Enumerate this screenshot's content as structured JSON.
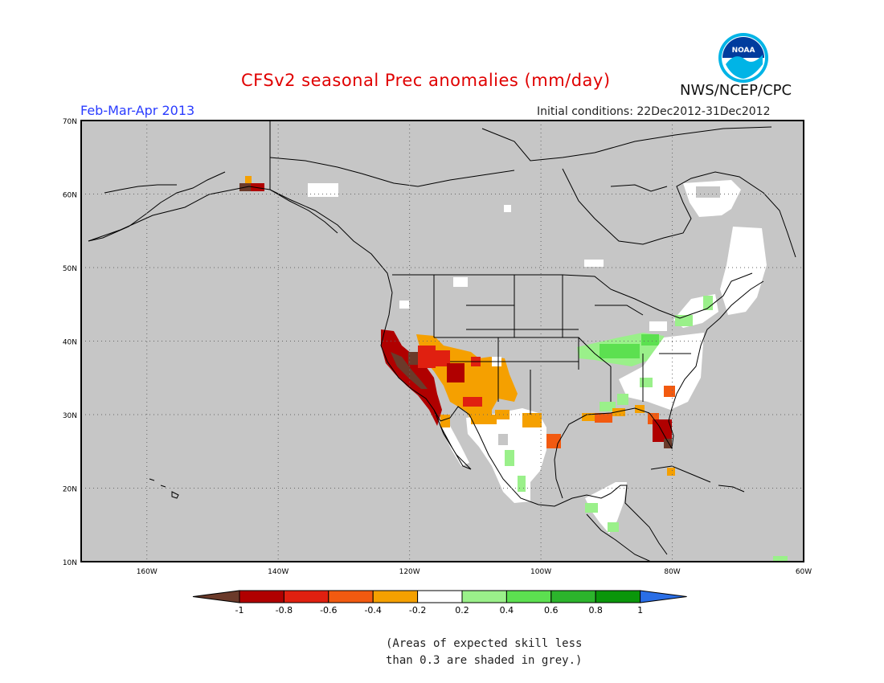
{
  "title": "CFSv2 seasonal Prec anomalies (mm/day)",
  "season": "Feb-Mar-Apr 2013",
  "initial_conditions": "Initial conditions: 22Dec2012-31Dec2012",
  "organization": "NWS/NCEP/CPC",
  "logo_text": "NOAA",
  "footnote": {
    "line1": "(Areas of expected skill less",
    "line2": "than 0.3 are shaded in grey.)"
  },
  "map": {
    "lon_range": [
      -170,
      -60
    ],
    "lat_range": [
      10,
      70
    ],
    "lat_ticks": [
      "10N",
      "20N",
      "30N",
      "40N",
      "50N",
      "60N",
      "70N"
    ],
    "lon_ticks": [
      "160W",
      "140W",
      "120W",
      "100W",
      "80W",
      "60W"
    ],
    "background_color": "#c6c6c6",
    "land_line_color": "#000000"
  },
  "colorbar": {
    "labels": [
      "-1",
      "-0.8",
      "-0.6",
      "-0.4",
      "-0.2",
      "0.2",
      "0.4",
      "0.6",
      "0.8",
      "1"
    ],
    "colors": [
      "#6b3a2a",
      "#b00000",
      "#e02010",
      "#f25a10",
      "#f5a000",
      "#ffffff",
      "#9af08a",
      "#5ce050",
      "#2cb42c",
      "#0a960a",
      "#2a6ee6"
    ]
  },
  "anomaly_regions": [
    {
      "name": "alaska-coast",
      "category": "-1"
    },
    {
      "name": "california",
      "category": "-1"
    },
    {
      "name": "southwest-us",
      "category": "-0.4"
    },
    {
      "name": "mexico",
      "category": "-0.2"
    },
    {
      "name": "florida",
      "category": "-1"
    },
    {
      "name": "ohio-valley",
      "category": "0.4"
    },
    {
      "name": "southeast-us",
      "category": "-0.2"
    },
    {
      "name": "eastern-canada",
      "category": "-0.2"
    }
  ]
}
